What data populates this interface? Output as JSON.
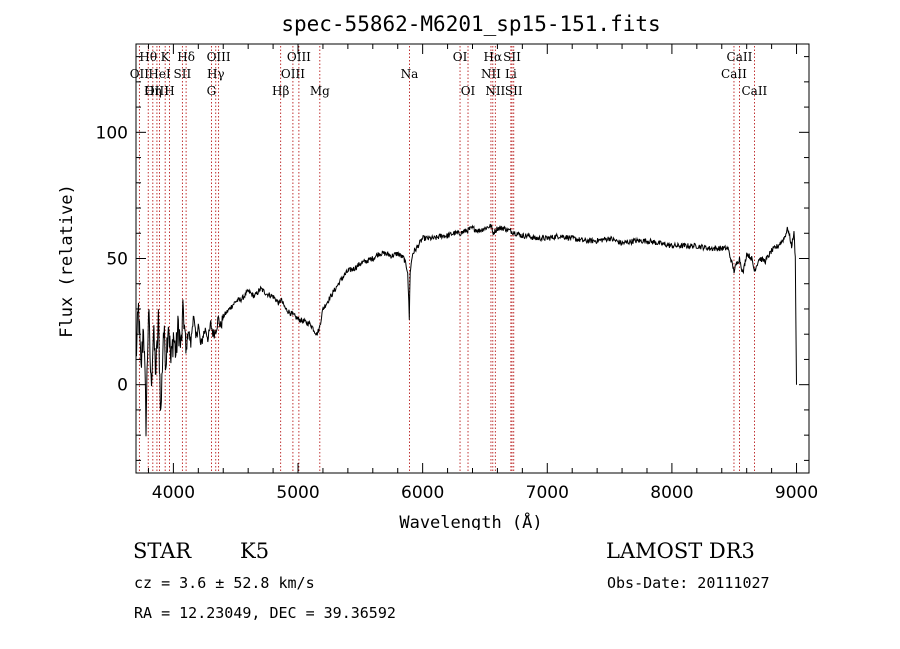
{
  "chart_data": {
    "type": "line",
    "title": "spec-55862-M6201_sp15-151.fits",
    "xlabel": "Wavelength (Å)",
    "ylabel": "Flux (relative)",
    "xlim": [
      3700,
      9100
    ],
    "ylim": [
      -35,
      135
    ],
    "x_ticks": [
      4000,
      5000,
      6000,
      7000,
      8000,
      9000
    ],
    "y_ticks": [
      0,
      50,
      100
    ],
    "series": [
      {
        "name": "flux",
        "x": [
          3700,
          3720,
          3740,
          3760,
          3780,
          3800,
          3820,
          3840,
          3860,
          3880,
          3900,
          3920,
          3940,
          3960,
          3980,
          4000,
          4020,
          4040,
          4060,
          4080,
          4100,
          4120,
          4140,
          4160,
          4180,
          4200,
          4220,
          4240,
          4260,
          4280,
          4300,
          4320,
          4340,
          4360,
          4380,
          4400,
          4450,
          4500,
          4550,
          4600,
          4650,
          4700,
          4750,
          4800,
          4850,
          4860,
          4900,
          4950,
          5000,
          5050,
          5100,
          5150,
          5170,
          5185,
          5200,
          5250,
          5300,
          5350,
          5400,
          5450,
          5500,
          5550,
          5600,
          5650,
          5700,
          5750,
          5800,
          5850,
          5880,
          5893,
          5900,
          5920,
          5950,
          6000,
          6050,
          6100,
          6150,
          6200,
          6250,
          6300,
          6350,
          6400,
          6450,
          6500,
          6550,
          6563,
          6600,
          6650,
          6700,
          6750,
          6800,
          6850,
          6900,
          6950,
          7000,
          7100,
          7200,
          7300,
          7400,
          7500,
          7600,
          7700,
          7800,
          7900,
          8000,
          8100,
          8200,
          8300,
          8400,
          8450,
          8498,
          8520,
          8542,
          8570,
          8600,
          8640,
          8662,
          8700,
          8750,
          8800,
          8850,
          8900,
          8930,
          8960,
          8980,
          8990,
          9000
        ],
        "y": [
          10,
          30,
          5,
          25,
          -15,
          30,
          0,
          20,
          5,
          25,
          -12,
          22,
          10,
          26,
          8,
          20,
          12,
          24,
          14,
          30,
          12,
          22,
          16,
          28,
          18,
          24,
          15,
          20,
          22,
          18,
          24,
          20,
          22,
          26,
          23,
          27,
          30,
          33,
          34,
          37,
          35,
          38,
          36,
          35,
          32,
          34,
          30,
          28,
          26,
          25,
          24,
          20,
          22,
          26,
          30,
          34,
          38,
          42,
          45,
          46,
          48,
          49,
          50,
          52,
          52,
          51,
          52,
          50,
          45,
          26,
          45,
          52,
          54,
          58,
          58,
          58,
          59,
          59,
          60,
          60,
          61,
          62,
          61,
          62,
          63,
          60,
          62,
          62,
          61,
          60,
          59,
          59,
          58,
          58,
          58,
          59,
          58,
          57,
          57,
          58,
          56,
          57,
          57,
          56,
          55,
          55,
          55,
          54,
          54,
          54,
          45,
          48,
          50,
          44,
          52,
          50,
          45,
          50,
          49,
          53,
          55,
          58,
          62,
          55,
          60,
          50,
          0
        ]
      }
    ],
    "spectral_lines": [
      {
        "name": "Hθ",
        "x": 3798,
        "row": 1
      },
      {
        "name": "OII",
        "x": 3727,
        "row": 2
      },
      {
        "name": "OIII",
        "x": 3868,
        "row": 3
      },
      {
        "name": "K",
        "x": 3934,
        "row": 1
      },
      {
        "name": "HeI",
        "x": 3889,
        "row": 2
      },
      {
        "name": "Hη",
        "x": 3835,
        "row": 3
      },
      {
        "name": "SII",
        "x": 4072,
        "row": 2
      },
      {
        "name": "H",
        "x": 3969,
        "row": 3
      },
      {
        "name": "Hδ",
        "x": 4102,
        "row": 1
      },
      {
        "name": "OIII",
        "x": 4363,
        "row": 1
      },
      {
        "name": "Hγ",
        "x": 4340,
        "row": 2
      },
      {
        "name": "G",
        "x": 4305,
        "row": 3
      },
      {
        "name": "Hβ",
        "x": 4861,
        "row": 3
      },
      {
        "name": "OIII",
        "x": 5007,
        "row": 1
      },
      {
        "name": "OIII",
        "x": 4959,
        "row": 2
      },
      {
        "name": "Mg",
        "x": 5175,
        "row": 3
      },
      {
        "name": "Na",
        "x": 5894,
        "row": 2
      },
      {
        "name": "OI",
        "x": 6300,
        "row": 1
      },
      {
        "name": "OI",
        "x": 6364,
        "row": 3
      },
      {
        "name": "Hα",
        "x": 6563,
        "row": 1
      },
      {
        "name": "NII",
        "x": 6548,
        "row": 2
      },
      {
        "name": "NII",
        "x": 6583,
        "row": 3
      },
      {
        "name": "SII",
        "x": 6717,
        "row": 1
      },
      {
        "name": "Li",
        "x": 6708,
        "row": 2
      },
      {
        "name": "SII",
        "x": 6731,
        "row": 3
      },
      {
        "name": "CaII",
        "x": 8542,
        "row": 1
      },
      {
        "name": "CaII",
        "x": 8498,
        "row": 2
      },
      {
        "name": "CaII",
        "x": 8662,
        "row": 3
      }
    ]
  },
  "info": {
    "object_class": "STAR",
    "subclass": "K5",
    "survey": "LAMOST DR3",
    "redshift": "cz = 3.6 ± 52.8 km/s",
    "obs_date": "Obs-Date: 20111027",
    "coords": "RA =  12.23049, DEC =  39.36592"
  },
  "colors": {
    "line_markers": "#b00000",
    "spectrum": "#000000",
    "axes": "#000000"
  }
}
